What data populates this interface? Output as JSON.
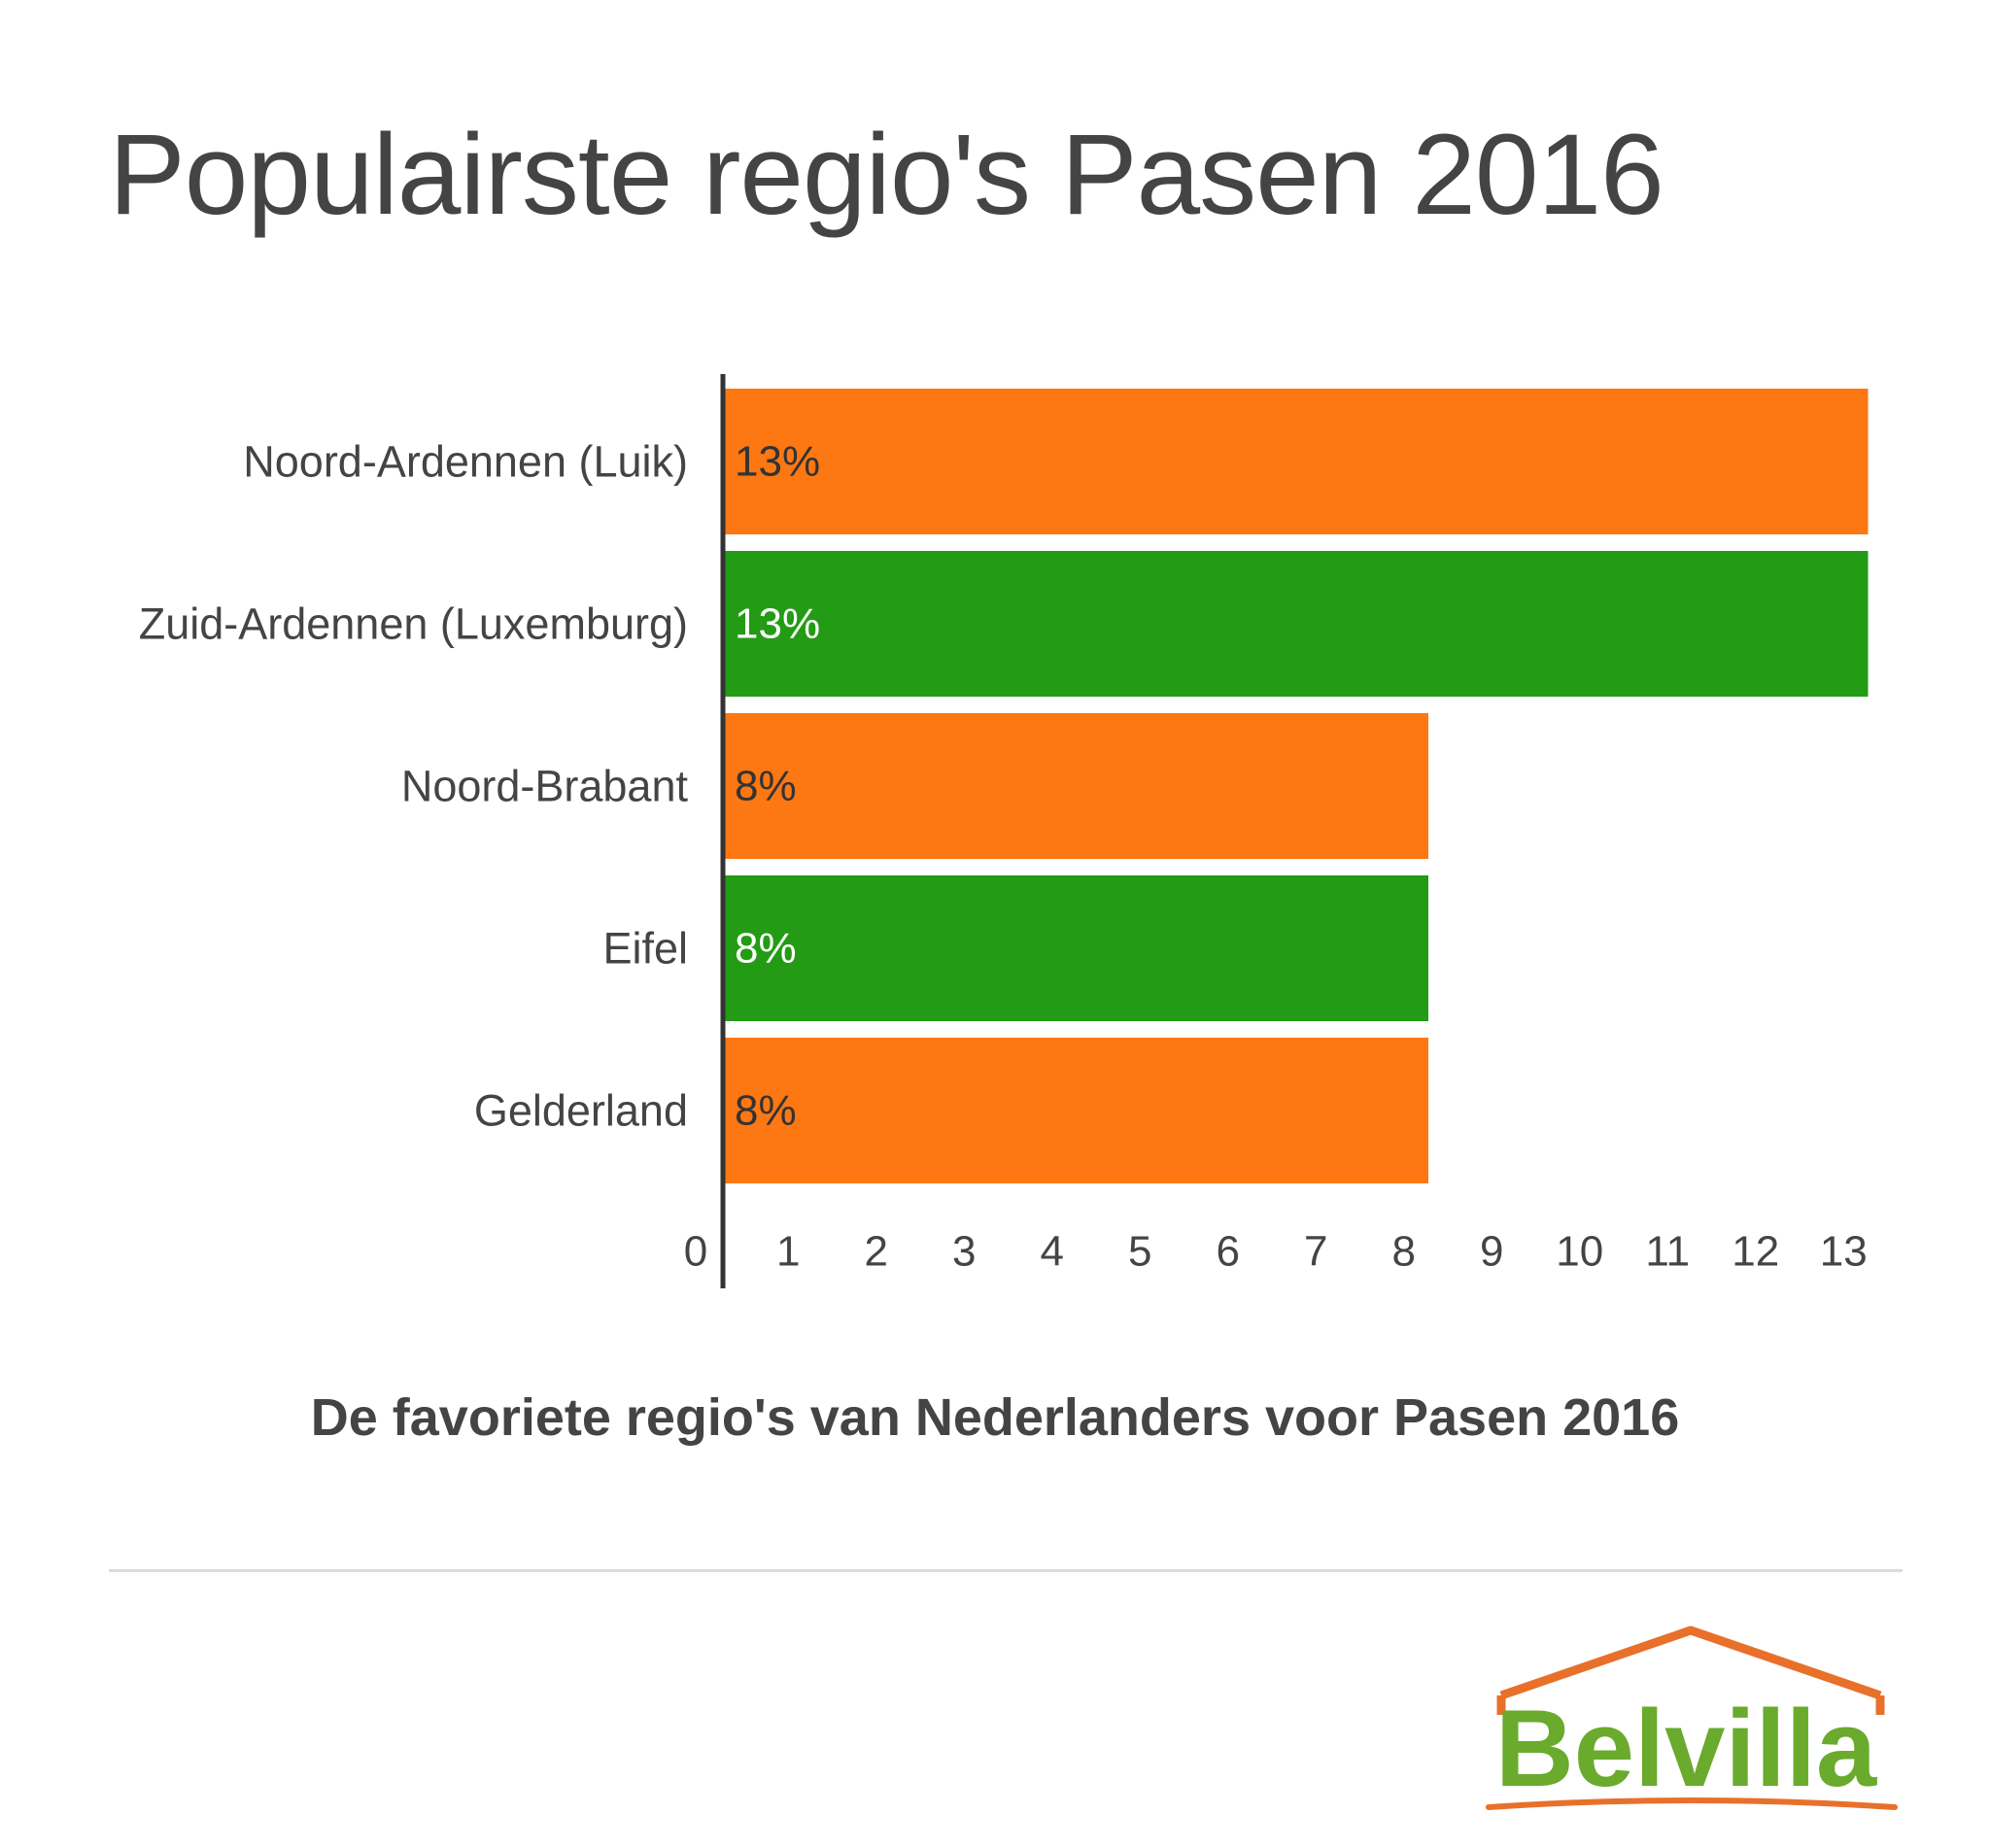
{
  "title": "Populairste regio's Pasen 2016",
  "subtitle": "De favoriete regio's van Nederlanders voor Pasen 2016",
  "logo": {
    "text": "Belvilla"
  },
  "colors": {
    "orange": "#fd7712",
    "green": "#249b15",
    "text": "#444444",
    "axis": "#333333",
    "logo_green": "#6aaa2c",
    "logo_roof": "#e8702a"
  },
  "chart_data": {
    "type": "bar",
    "orientation": "horizontal",
    "categories": [
      "Noord-Ardennen (Luik)",
      "Zuid-Ardennen (Luxemburg)",
      "Noord-Brabant",
      "Eifel",
      "Gelderland"
    ],
    "values": [
      13,
      13,
      8,
      8,
      8
    ],
    "data_labels": [
      "13%",
      "13%",
      "8%",
      "8%",
      "8%"
    ],
    "bar_colors": [
      "#fd7712",
      "#249b15",
      "#fd7712",
      "#249b15",
      "#fd7712"
    ],
    "x_ticks": [
      0,
      1,
      2,
      3,
      4,
      5,
      6,
      7,
      8,
      9,
      10,
      11,
      12,
      13
    ],
    "xlim": [
      0,
      13
    ],
    "grid": false,
    "legend": false
  }
}
